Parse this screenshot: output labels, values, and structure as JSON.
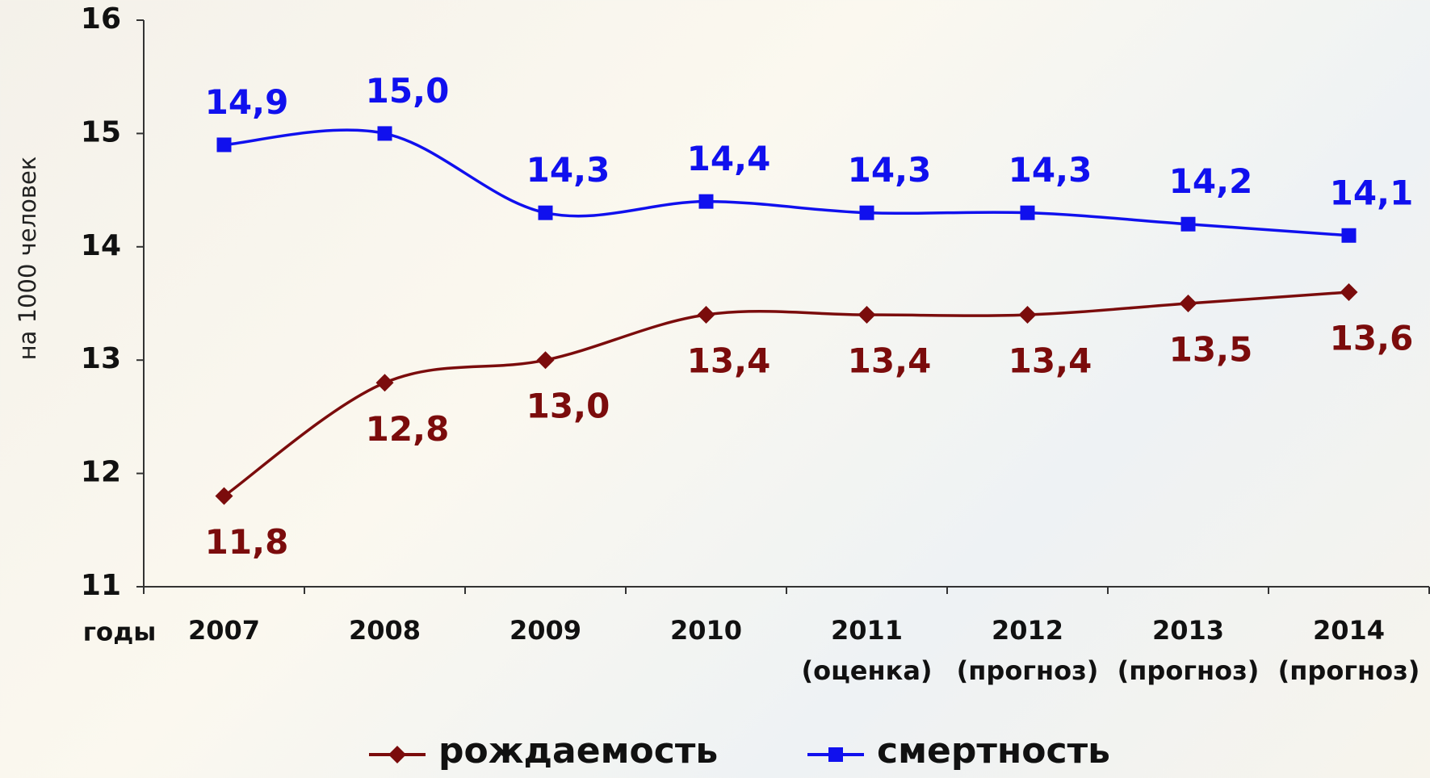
{
  "chart_data": {
    "type": "line",
    "y_label": "на 1000 человек",
    "x_label": "годы",
    "categories": [
      [
        "2007"
      ],
      [
        "2008"
      ],
      [
        "2009"
      ],
      [
        "2010"
      ],
      [
        "2011",
        "(оценка)"
      ],
      [
        "2012",
        "(прогноз)"
      ],
      [
        "2013",
        "(прогноз)"
      ],
      [
        "2014",
        "(прогноз)"
      ]
    ],
    "series": [
      {
        "name": "рождаемость",
        "color": "#7b0c0c",
        "marker": "diamond",
        "values": [
          11.8,
          12.8,
          13.0,
          13.4,
          13.4,
          13.4,
          13.5,
          13.6
        ],
        "value_labels": [
          "11,8",
          "12,8",
          "13,0",
          "13,4",
          "13,4",
          "13,4",
          "13,5",
          "13,6"
        ]
      },
      {
        "name": "смертность",
        "color": "#1010ee",
        "marker": "square",
        "values": [
          14.9,
          15.0,
          14.3,
          14.4,
          14.3,
          14.3,
          14.2,
          14.1
        ],
        "value_labels": [
          "14,9",
          "15,0",
          "14,3",
          "14,4",
          "14,3",
          "14,3",
          "14,2",
          "14,1"
        ]
      }
    ],
    "ylim": [
      11,
      16
    ],
    "yticks": [
      11,
      12,
      13,
      14,
      15,
      16
    ],
    "grid": false,
    "legend": "bottom"
  }
}
